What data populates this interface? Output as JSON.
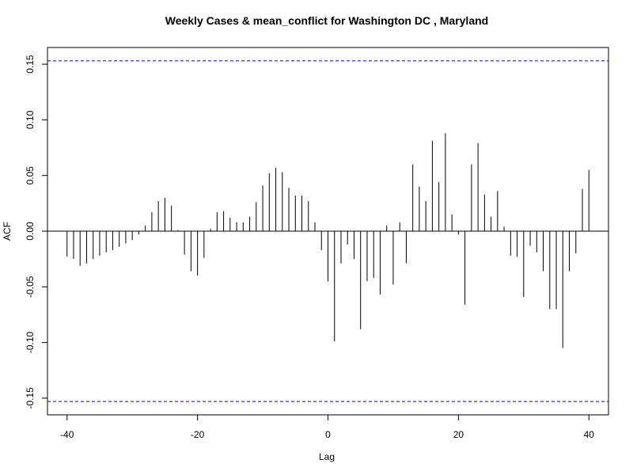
{
  "chart_data": {
    "type": "bar",
    "title": "Weekly Cases & mean_conflict for Washington DC , Maryland",
    "xlabel": "Lag",
    "ylabel": "ACF",
    "xlim": [
      -43,
      43
    ],
    "ylim": [
      -0.165,
      0.165
    ],
    "x_ticks": [
      -40,
      -20,
      0,
      20,
      40
    ],
    "y_ticks": [
      -0.15,
      -0.1,
      -0.05,
      0.0,
      0.05,
      0.1,
      0.15
    ],
    "y_tick_labels": [
      "-0.15",
      "-0.10",
      "-0.05",
      "0.00",
      "0.05",
      "0.10",
      "0.15"
    ],
    "confidence_bound": 0.153,
    "confidence_color": "#0000cc",
    "bar_color": "#000000",
    "grid": false,
    "lags": [
      -40,
      -39,
      -38,
      -37,
      -36,
      -35,
      -34,
      -33,
      -32,
      -31,
      -30,
      -29,
      -28,
      -27,
      -26,
      -25,
      -24,
      -23,
      -22,
      -21,
      -20,
      -19,
      -18,
      -17,
      -16,
      -15,
      -14,
      -13,
      -12,
      -11,
      -10,
      -9,
      -8,
      -7,
      -6,
      -5,
      -4,
      -3,
      -2,
      -1,
      0,
      1,
      2,
      3,
      4,
      5,
      6,
      7,
      8,
      9,
      10,
      11,
      12,
      13,
      14,
      15,
      16,
      17,
      18,
      19,
      20,
      21,
      22,
      23,
      24,
      25,
      26,
      27,
      28,
      29,
      30,
      31,
      32,
      33,
      34,
      35,
      36,
      37,
      38,
      39,
      40
    ],
    "acf": [
      -0.023,
      -0.025,
      -0.031,
      -0.029,
      -0.025,
      -0.022,
      -0.019,
      -0.017,
      -0.014,
      -0.011,
      -0.008,
      -0.003,
      0.005,
      0.017,
      0.027,
      0.03,
      0.023,
      0.001,
      -0.021,
      -0.036,
      -0.04,
      -0.024,
      0.002,
      0.017,
      0.018,
      0.012,
      0.008,
      0.008,
      0.013,
      0.026,
      0.041,
      0.052,
      0.057,
      0.053,
      0.039,
      0.032,
      0.032,
      0.027,
      0.008,
      -0.017,
      -0.045,
      -0.099,
      -0.029,
      -0.012,
      -0.025,
      -0.088,
      -0.045,
      -0.042,
      -0.057,
      0.005,
      -0.048,
      0.008,
      -0.029,
      0.06,
      0.04,
      0.027,
      0.081,
      0.044,
      0.088,
      0.015,
      -0.003,
      -0.066,
      0.06,
      0.079,
      0.033,
      0.013,
      0.036,
      0.004,
      -0.022,
      -0.023,
      -0.059,
      -0.013,
      -0.019,
      -0.036,
      -0.07,
      -0.07,
      -0.105,
      -0.036,
      -0.02,
      0.038,
      0.055
    ]
  }
}
